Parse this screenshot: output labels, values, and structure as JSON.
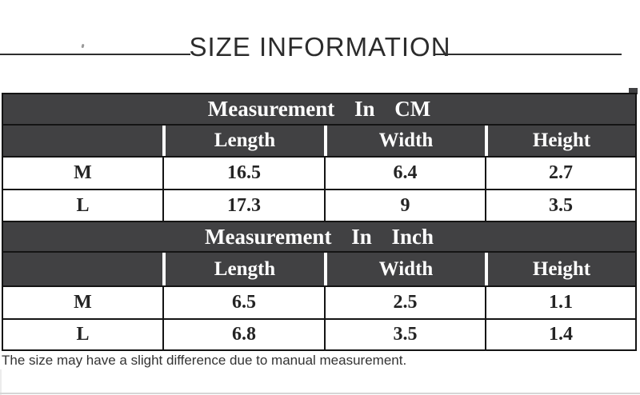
{
  "page": {
    "title": "SIZE INFORMATION",
    "footnote": "The size may have a slight difference due to manual measurement."
  },
  "colors": {
    "header_bg": "#414143",
    "table_border": "#141414",
    "title_text": "#2c2c2c",
    "header_text": "#fdfdfd",
    "cell_text": "#242424"
  },
  "size_tables": [
    {
      "title": "Measurement In CM",
      "columns": [
        "",
        "Length",
        "Width",
        "Height"
      ],
      "rows": [
        [
          "M",
          "16.5",
          "6.4",
          "2.7"
        ],
        [
          "L",
          "17.3",
          "9",
          "3.5"
        ]
      ]
    },
    {
      "title": "Measurement In Inch",
      "columns": [
        "",
        "Length",
        "Width",
        "Height"
      ],
      "rows": [
        [
          "M",
          "6.5",
          "2.5",
          "1.1"
        ],
        [
          "L",
          "6.8",
          "3.5",
          "1.4"
        ]
      ]
    }
  ]
}
